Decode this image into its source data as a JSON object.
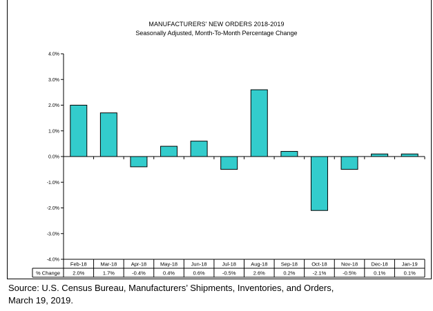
{
  "chart_data": {
    "type": "bar",
    "title": "MANUFACTURERS'  NEW ORDERS 2018-2019",
    "subtitle": "Seasonally  Adjusted,   Month-To-Month  Percentage Change",
    "categories": [
      "Feb-18",
      "Mar-18",
      "Apr-18",
      "May-18",
      "Jun-18",
      "Jul-18",
      "Aug-18",
      "Sep-18",
      "Oct-18",
      "Nov-18",
      "Dec-18",
      "Jan-19"
    ],
    "values": [
      2.0,
      1.7,
      -0.4,
      0.4,
      0.6,
      -0.5,
      2.6,
      0.2,
      -2.1,
      -0.5,
      0.1,
      0.1
    ],
    "value_labels": [
      "2.0%",
      "1.7%",
      "-0.4%",
      "0.4%",
      "0.6%",
      "-0.5%",
      "2.6%",
      "0.2%",
      "-2.1%",
      "-0.5%",
      "0.1%",
      "0.1%"
    ],
    "table_row_label": "% Change",
    "ylim": [
      -4.0,
      4.0
    ],
    "yticks": [
      4.0,
      3.0,
      2.0,
      1.0,
      0.0,
      -1.0,
      -2.0,
      -3.0,
      -4.0
    ],
    "ytick_labels": [
      "4.0%",
      "3.0%",
      "2.0%",
      "1.0%",
      "0.0%",
      "-1.0%",
      "-2.0%",
      "-3.0%",
      "-4.0%"
    ],
    "bar_color": "#33cccc",
    "grid": false
  },
  "source": {
    "line1": "Source: U.S. Census Bureau, Manufacturers’ Shipments, Inventories, and Orders,",
    "line2": "March 19, 2019."
  }
}
